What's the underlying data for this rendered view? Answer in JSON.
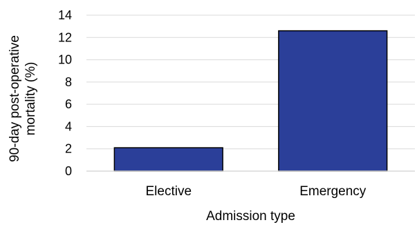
{
  "chart_data": {
    "type": "bar",
    "categories": [
      "Elective",
      "Emergency"
    ],
    "values": [
      2.1,
      12.6
    ],
    "title": "",
    "xlabel": "Admission type",
    "ylabel_lines": [
      "90-day post-operative",
      "mortality (%)"
    ],
    "ylim": [
      0,
      14
    ],
    "yticks": [
      "0",
      "2",
      "4",
      "6",
      "8",
      "10",
      "12",
      "14"
    ],
    "grid": true,
    "bar_color": "#2b3f99",
    "bar_edge_color": "#000000",
    "grid_color": "#d9d9d9"
  }
}
